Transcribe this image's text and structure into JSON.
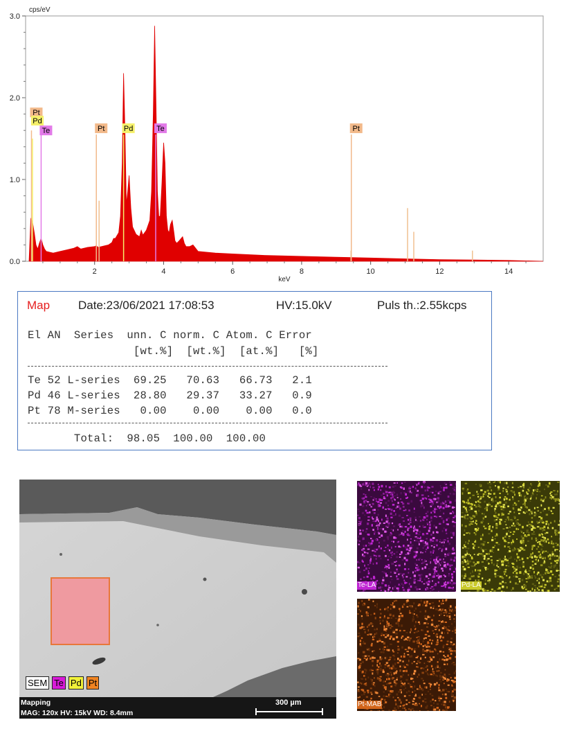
{
  "chart_data": {
    "type": "area",
    "ylabel": "cps/eV",
    "xlabel": "keV",
    "xlim": [
      0.0,
      15.0
    ],
    "ylim": [
      0.0,
      3.0
    ],
    "xticks": [
      2,
      4,
      6,
      8,
      10,
      12,
      14
    ],
    "yticks": [
      "0.0",
      "1.0",
      "2.0",
      "3.0"
    ],
    "fill_color": "#e00000",
    "spectrum": {
      "x": [
        0.1,
        0.15,
        0.2,
        0.25,
        0.3,
        0.35,
        0.4,
        0.45,
        0.5,
        0.55,
        0.6,
        0.7,
        0.8,
        1.0,
        1.2,
        1.4,
        1.5,
        1.6,
        1.8,
        2.0,
        2.05,
        2.1,
        2.2,
        2.4,
        2.5,
        2.55,
        2.6,
        2.7,
        2.75,
        2.8,
        2.84,
        2.88,
        2.92,
        2.96,
        3.0,
        3.05,
        3.1,
        3.2,
        3.3,
        3.35,
        3.4,
        3.5,
        3.6,
        3.65,
        3.7,
        3.74,
        3.78,
        3.82,
        3.86,
        3.9,
        3.95,
        4.0,
        4.04,
        4.08,
        4.12,
        4.16,
        4.2,
        4.25,
        4.3,
        4.33,
        4.38,
        4.45,
        4.55,
        4.6,
        4.65,
        4.75,
        4.85,
        5.0,
        5.5,
        6.0,
        7.0,
        8.0,
        9.0,
        10.0,
        11.0,
        12.0,
        13.0,
        14.0,
        15.0
      ],
      "y": [
        0.0,
        0.52,
        0.48,
        0.35,
        0.2,
        0.15,
        0.22,
        0.28,
        0.2,
        0.15,
        0.12,
        0.11,
        0.1,
        0.12,
        0.14,
        0.16,
        0.18,
        0.15,
        0.17,
        0.18,
        0.19,
        0.17,
        0.18,
        0.2,
        0.23,
        0.28,
        0.28,
        0.35,
        0.55,
        1.2,
        2.3,
        1.6,
        0.7,
        0.85,
        1.05,
        0.65,
        0.42,
        0.33,
        0.3,
        0.38,
        0.32,
        0.38,
        0.5,
        0.85,
        1.8,
        2.88,
        1.9,
        0.85,
        0.55,
        0.55,
        0.95,
        1.45,
        1.2,
        0.55,
        0.38,
        0.35,
        0.45,
        0.5,
        0.35,
        0.25,
        0.22,
        0.25,
        0.3,
        0.22,
        0.18,
        0.18,
        0.2,
        0.12,
        0.1,
        0.09,
        0.07,
        0.06,
        0.05,
        0.04,
        0.03,
        0.02,
        0.015,
        0.01,
        0.0
      ]
    },
    "element_markers": [
      {
        "element": "Pt",
        "energy": 0.17,
        "height": 1.6,
        "color": "#f2b98a"
      },
      {
        "element": "Pd",
        "energy": 0.2,
        "height": 1.5,
        "color": "#f5f06b"
      },
      {
        "element": "Te",
        "energy": 0.45,
        "height": 1.55,
        "color": "#e27ae8"
      },
      {
        "element": "Pt",
        "energy": 2.05,
        "height": 1.55,
        "color": "#f2b98a"
      },
      {
        "element": "Pd",
        "energy": 2.84,
        "height": 1.55,
        "color": "#f5f06b"
      },
      {
        "element": "Te",
        "energy": 3.77,
        "height": 1.55,
        "color": "#e27ae8"
      },
      {
        "element": "Pt",
        "energy": 9.44,
        "height": 1.55,
        "color": "#f2b98a"
      }
    ],
    "extra_lines": [
      {
        "energy": 2.13,
        "height": 0.74
      },
      {
        "energy": 9.43,
        "height": 0.13
      },
      {
        "energy": 11.07,
        "height": 0.65
      },
      {
        "energy": 11.25,
        "height": 0.36
      },
      {
        "energy": 12.95,
        "height": 0.13
      }
    ]
  },
  "map": {
    "mode": "Map",
    "date": "Date:23/06/2021 17:08:53",
    "hv": "HV:15.0kV",
    "puls": "Puls th.:2.55kcps",
    "header_line1": "El AN  Series  unn. C norm. C Atom. C Error",
    "header_line2": "                [wt.%]  [wt.%]  [at.%]   [%]",
    "rows": [
      "Te 52 L-series  69.25   70.63   66.73   2.1",
      "Pd 46 L-series  28.80   29.37   33.27   0.9",
      "Pt 78 M-series   0.00    0.00    0.00   0.0"
    ],
    "total": "       Total:  98.05  100.00  100.00"
  },
  "sem": {
    "legend": {
      "sem": "SEM",
      "te": "Te",
      "pd": "Pd",
      "pt": "Pt"
    },
    "footer_mode": "Mapping",
    "footer_params": "MAG: 120x  HV: 15kV  WD: 8.4mm",
    "scale": "300 µm"
  },
  "maps": {
    "te": {
      "label": "Te-LA",
      "color": "#c026d3"
    },
    "pd": {
      "label": "Pd-LA",
      "color": "#c9c92a"
    },
    "pt": {
      "label": "Pt-MAB",
      "color": "#d2651a"
    }
  }
}
